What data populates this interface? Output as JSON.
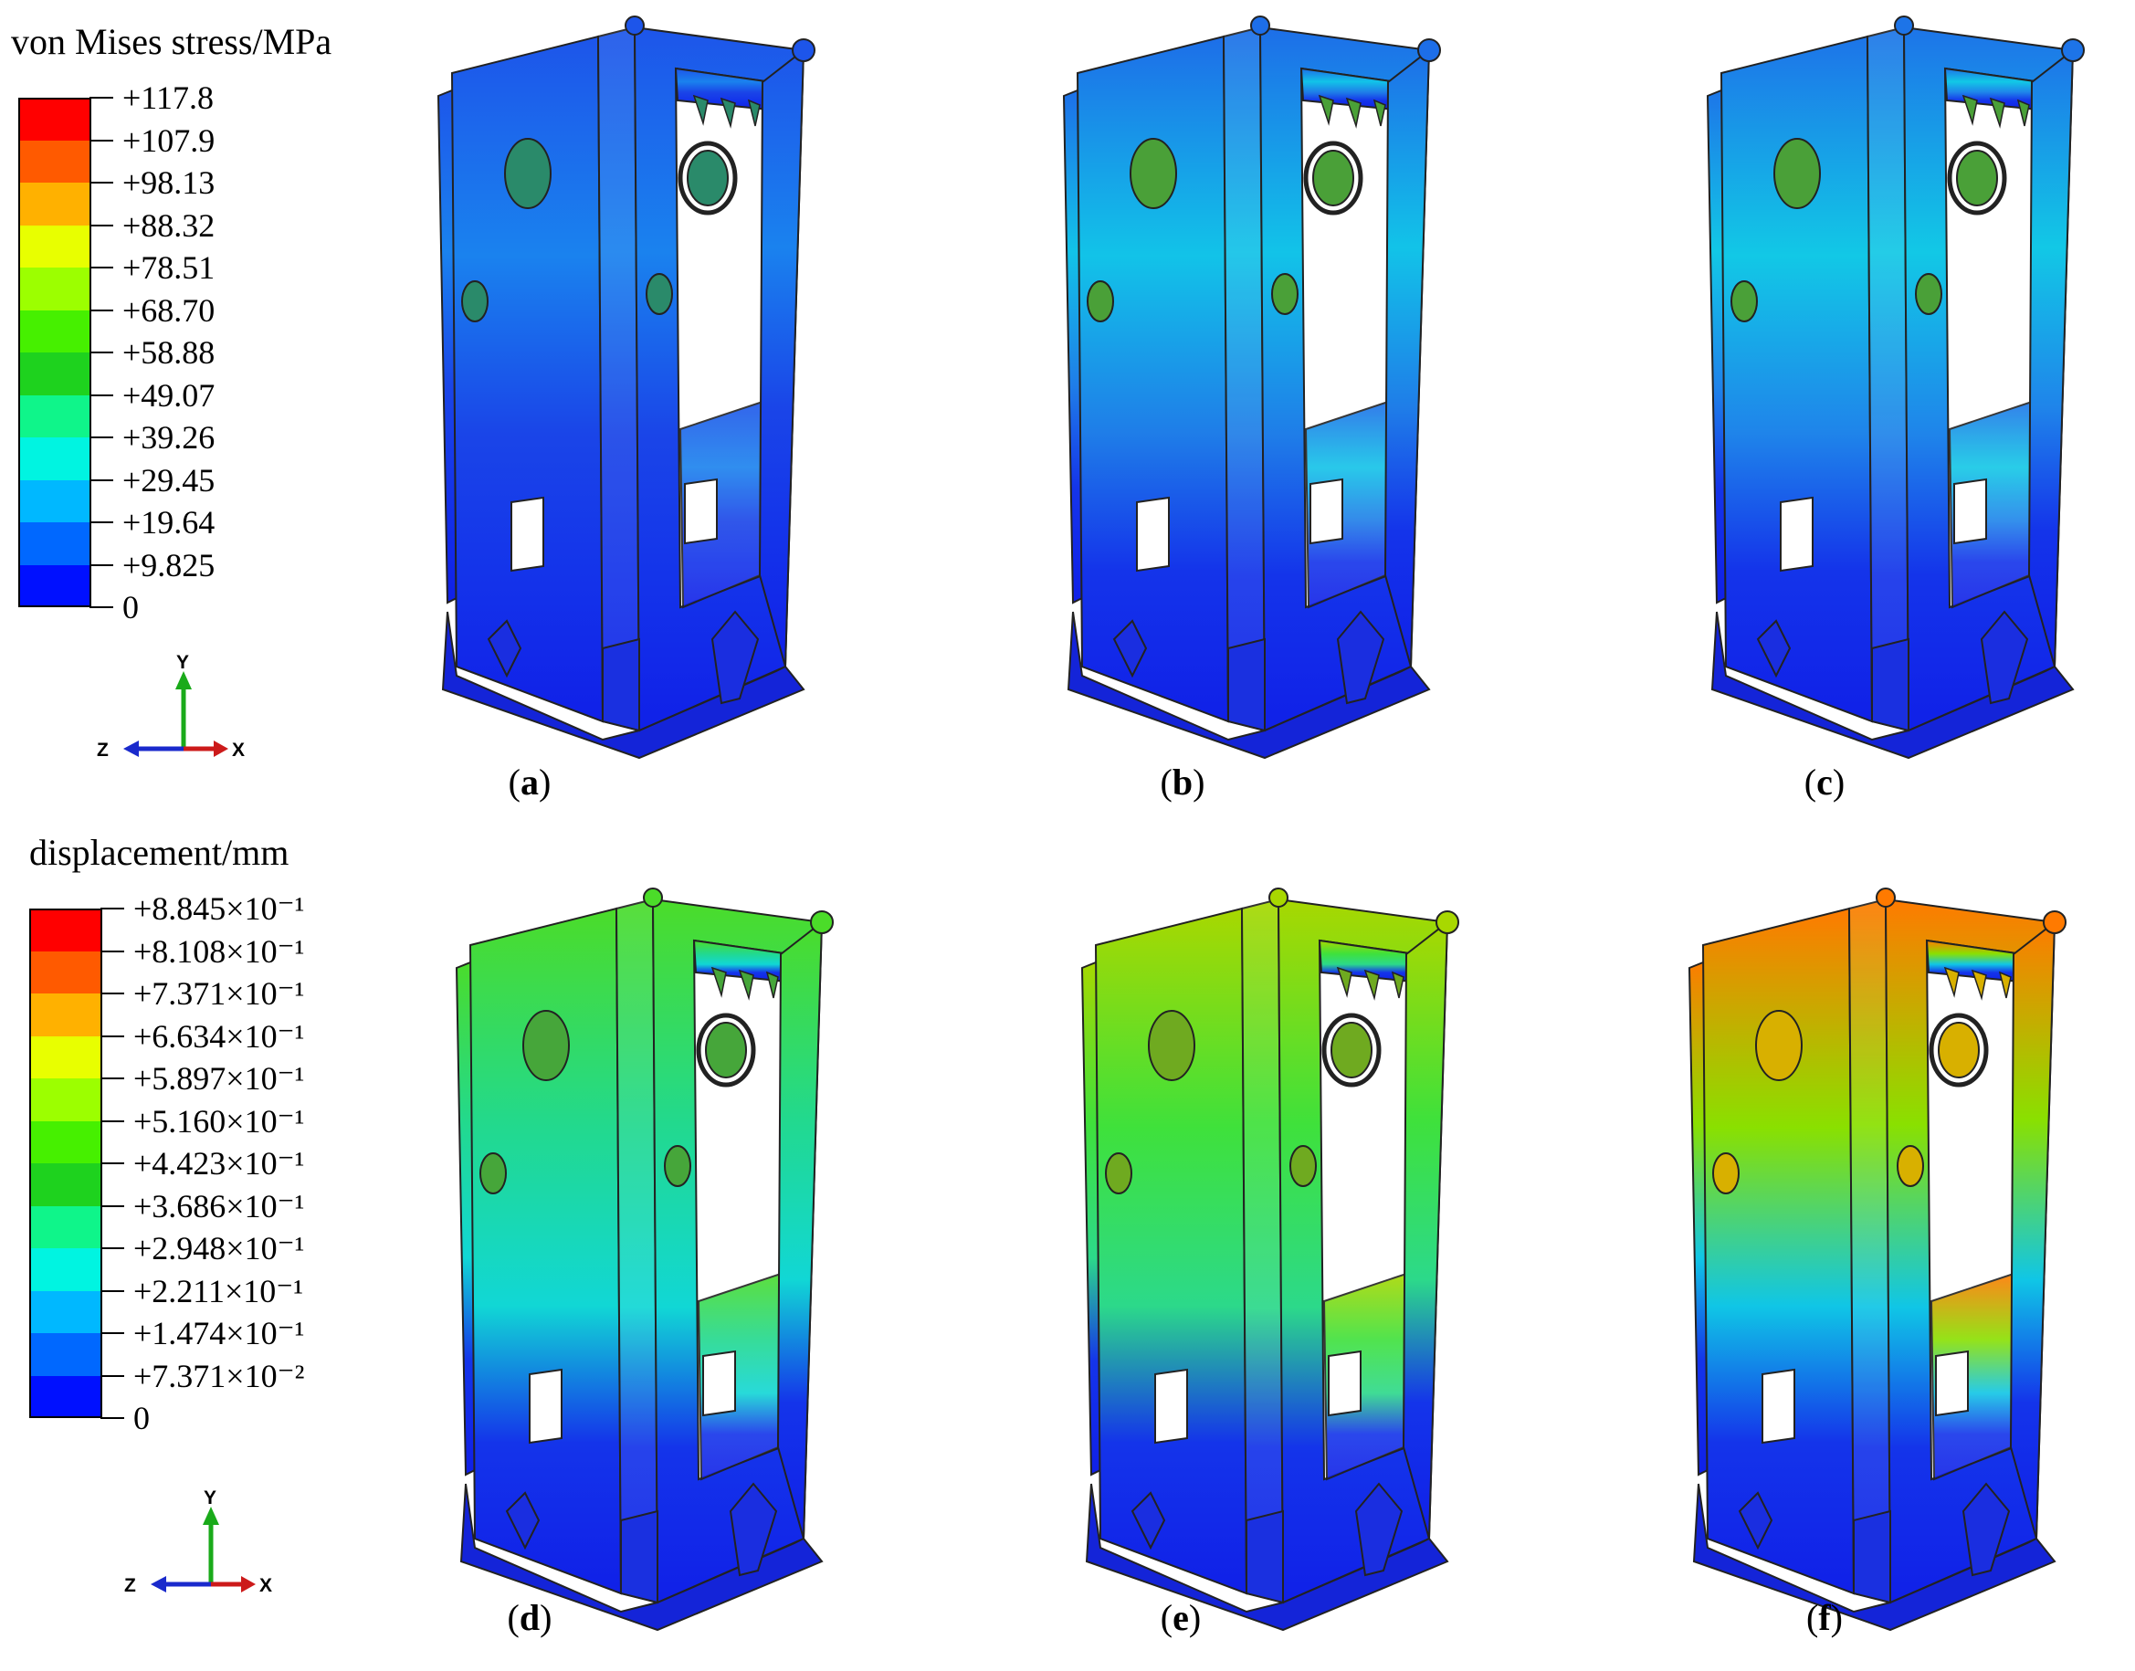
{
  "legends": {
    "stress": {
      "title": "von Mises stress/MPa",
      "labels": [
        "+117.8",
        "+107.9",
        "+98.13",
        "+88.32",
        "+78.51",
        "+68.70",
        "+58.88",
        "+49.07",
        "+39.26",
        "+29.45",
        "+19.64",
        "+9.825",
        "0"
      ]
    },
    "displacement": {
      "title": "displacement/mm",
      "labels": [
        "+8.845×10⁻¹",
        "+8.108×10⁻¹",
        "+7.371×10⁻¹",
        "+6.634×10⁻¹",
        "+5.897×10⁻¹",
        "+5.160×10⁻¹",
        "+4.423×10⁻¹",
        "+3.686×10⁻¹",
        "+2.948×10⁻¹",
        "+2.211×10⁻¹",
        "+1.474×10⁻¹",
        "+7.371×10⁻²",
        "0"
      ]
    }
  },
  "scale_colors": [
    "#ff0000",
    "#ff5a00",
    "#ffb100",
    "#e8ff00",
    "#9cff00",
    "#46f000",
    "#1ed21e",
    "#0ff58a",
    "#00f4e1",
    "#00b8ff",
    "#0068ff",
    "#0010ff"
  ],
  "axes": {
    "y": "Y",
    "z": "Z",
    "x": "X"
  },
  "panels": [
    {
      "letter": "a",
      "body": "#1a45e8",
      "mid": "#1a82ee",
      "top": "#1d55ea",
      "hole": "#2a8a6a"
    },
    {
      "letter": "b",
      "body": "#1f7de8",
      "mid": "#12c3e8",
      "top": "#1d6ee8",
      "hole": "#4aa038"
    },
    {
      "letter": "c",
      "body": "#1f84ea",
      "mid": "#12c8e6",
      "top": "#1d74e8",
      "hole": "#4aa038"
    },
    {
      "letter": "d",
      "body": "#11d7d5",
      "mid": "#22d98e",
      "top": "#4bdc29",
      "hole": "#46a63a"
    },
    {
      "letter": "e",
      "body": "#2cd98a",
      "mid": "#3fe13b",
      "top": "#a8d800",
      "hole": "#6faa20"
    },
    {
      "letter": "f",
      "body": "#10c6e6",
      "mid": "#8ae000",
      "top": "#ff7a00",
      "hole": "#d8b000"
    }
  ]
}
